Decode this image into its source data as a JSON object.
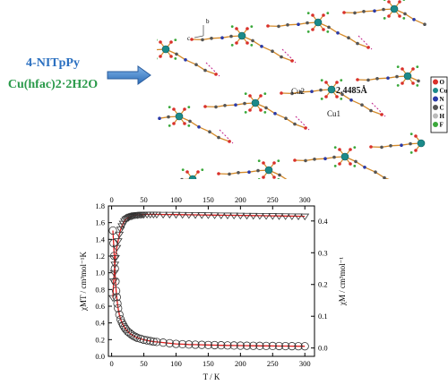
{
  "reaction": {
    "reagent_1": "4-NITpPy",
    "reagent_2": "Cu(hfac)2·2H2O"
  },
  "structure": {
    "labels": {
      "cu2": "Cu2",
      "cu1": "Cu1",
      "distance": "2.4485Å",
      "axis_b": "b",
      "axis_c": "c"
    },
    "legend": [
      {
        "label": "O",
        "color": "#d9302a"
      },
      {
        "label": "Cu",
        "color": "#1b8a8a"
      },
      {
        "label": "N",
        "color": "#2a3aa8"
      },
      {
        "label": "C",
        "color": "#555555"
      },
      {
        "label": "H",
        "color": "#bbbbbb"
      },
      {
        "label": "F",
        "color": "#3aa83a"
      }
    ],
    "colors": {
      "bond": "#d48a2a",
      "hbond": "#c0208a"
    }
  },
  "chart_data": {
    "type": "scatter",
    "xlabel": "T / K",
    "ylabel_left": "χMT / cm³mol⁻¹K",
    "ylabel_right": "χM / cm³mol⁻¹",
    "xlim": [
      -5,
      315
    ],
    "ylim_left": [
      0.0,
      1.8
    ],
    "ylim_right": [
      -0.0263,
      0.4474
    ],
    "x_ticks": [
      0,
      50,
      100,
      150,
      200,
      250,
      300
    ],
    "y_left_ticks": [
      0.0,
      0.2,
      0.4,
      0.6,
      0.8,
      1.0,
      1.2,
      1.4,
      1.6,
      1.8
    ],
    "y_right_ticks": [
      0.0,
      0.1,
      0.2,
      0.3,
      0.4
    ],
    "grid": false,
    "series": [
      {
        "axis": "left",
        "marker": "triangle-down",
        "x": [
          2,
          3,
          4,
          5,
          6,
          8,
          10,
          12,
          14,
          16,
          18,
          20,
          22,
          24,
          26,
          28,
          30,
          32,
          34,
          36,
          38,
          40,
          42,
          44,
          46,
          48,
          50,
          55,
          60,
          65,
          70,
          80,
          90,
          100,
          110,
          120,
          130,
          140,
          150,
          160,
          170,
          180,
          190,
          200,
          210,
          220,
          230,
          240,
          250,
          260,
          270,
          280,
          290,
          300
        ],
        "values": [
          0.7,
          0.9,
          1.0,
          1.1,
          1.18,
          1.3,
          1.38,
          1.46,
          1.52,
          1.56,
          1.59,
          1.62,
          1.64,
          1.65,
          1.66,
          1.67,
          1.675,
          1.68,
          1.685,
          1.69,
          1.69,
          1.692,
          1.694,
          1.695,
          1.696,
          1.697,
          1.697,
          1.698,
          1.698,
          1.698,
          1.698,
          1.697,
          1.697,
          1.696,
          1.695,
          1.694,
          1.693,
          1.692,
          1.691,
          1.69,
          1.689,
          1.688,
          1.687,
          1.686,
          1.685,
          1.684,
          1.683,
          1.682,
          1.681,
          1.68,
          1.679,
          1.678,
          1.677,
          1.676
        ]
      },
      {
        "axis": "right",
        "marker": "circle",
        "x": [
          2,
          3,
          4,
          5,
          6,
          7,
          8,
          9,
          10,
          12,
          14,
          16,
          18,
          20,
          22,
          25,
          28,
          31,
          34,
          37,
          40,
          45,
          50,
          55,
          60,
          65,
          70,
          80,
          90,
          100,
          110,
          120,
          130,
          140,
          150,
          160,
          170,
          180,
          190,
          200,
          210,
          220,
          230,
          240,
          250,
          260,
          270,
          280,
          290,
          300
        ],
        "values": [
          0.37,
          0.33,
          0.29,
          0.25,
          0.21,
          0.18,
          0.16,
          0.14,
          0.125,
          0.105,
          0.09,
          0.08,
          0.072,
          0.065,
          0.059,
          0.052,
          0.047,
          0.042,
          0.038,
          0.035,
          0.032,
          0.029,
          0.026,
          0.024,
          0.022,
          0.02,
          0.019,
          0.017,
          0.015,
          0.013,
          0.012,
          0.011,
          0.0105,
          0.01,
          0.0095,
          0.009,
          0.0085,
          0.008,
          0.0078,
          0.0075,
          0.0072,
          0.007,
          0.0068,
          0.0066,
          0.0064,
          0.0062,
          0.006,
          0.0058,
          0.0056,
          0.0055
        ]
      }
    ],
    "fit_color": "#e02020"
  }
}
